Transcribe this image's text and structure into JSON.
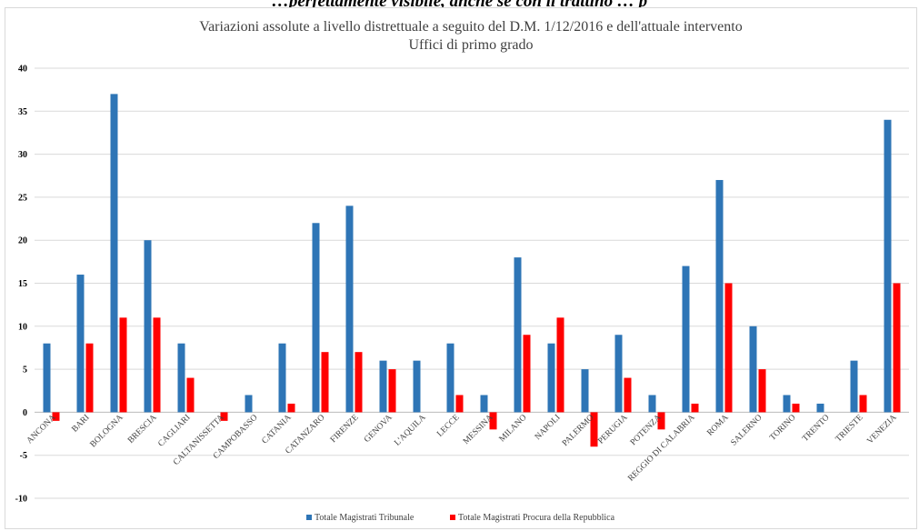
{
  "top_cut_text": "…perfettamente visibile, anche se con il trattino … p",
  "chart_data": {
    "type": "bar",
    "title": "Variazioni assolute a livello distrettuale a seguito del D.M. 1/12/2016  e dell'attuale intervento",
    "subtitle": "Uffici di primo grado",
    "categories": [
      "ANCONA",
      "BARI",
      "BOLOGNA",
      "BRESCIA",
      "CAGLIARI",
      "CALTANISSETTA",
      "CAMPOBASSO",
      "CATANIA",
      "CATANZARO",
      "FIRENZE",
      "GENOVA",
      "L'AQUILA",
      "LECCE",
      "MESSINA",
      "MILANO",
      "NAPOLI",
      "PALERMO",
      "PERUGIA",
      "POTENZA",
      "REGGIO DI CALABRIA",
      "ROMA",
      "SALERNO",
      "TORINO",
      "TRENTO",
      "TRIESTE",
      "VENEZIA"
    ],
    "series": [
      {
        "name": "Totale Magistrati Tribunale",
        "color": "#2e75b6",
        "values": [
          8,
          16,
          37,
          20,
          8,
          0,
          2,
          8,
          22,
          24,
          6,
          6,
          8,
          2,
          18,
          8,
          5,
          9,
          2,
          17,
          27,
          10,
          2,
          1,
          6,
          34
        ]
      },
      {
        "name": "Totale Magistrati Procura della Repubblica",
        "color": "#ff0000",
        "values": [
          -1,
          8,
          11,
          11,
          4,
          -1,
          0,
          1,
          7,
          7,
          5,
          0,
          2,
          -2,
          9,
          11,
          -4,
          4,
          -2,
          1,
          15,
          5,
          1,
          0,
          2,
          15
        ]
      }
    ],
    "ylim": [
      -10,
      40
    ],
    "yticks": [
      -10,
      -5,
      0,
      5,
      10,
      15,
      20,
      25,
      30,
      35,
      40
    ],
    "grid": true,
    "legend": "bottom"
  }
}
